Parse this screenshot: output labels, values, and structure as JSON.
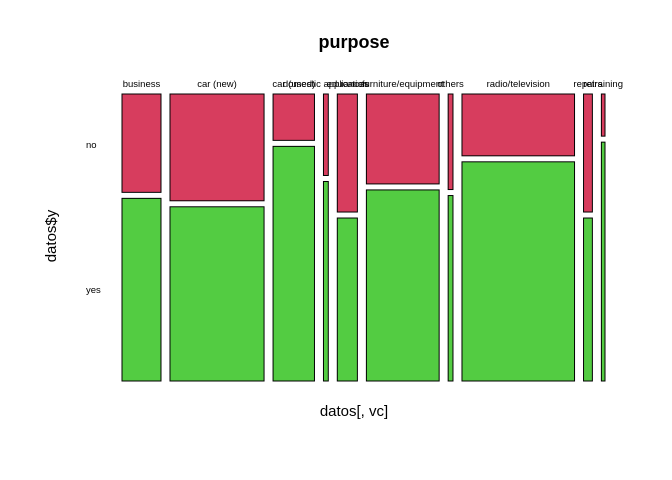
{
  "chart_data": {
    "type": "mosaic",
    "title": "purpose",
    "xlabel": "datos[, vc]",
    "ylabel": "datos$y",
    "row_levels": [
      "no",
      "yes"
    ],
    "colors": {
      "no": "#D73D5E",
      "yes": "#53CC42"
    },
    "categories": [
      "business",
      "car (new)",
      "car (used)",
      "domestic appliances",
      "education",
      "furniture/equipment",
      "others",
      "radio/television",
      "repairs",
      "retraining"
    ],
    "counts": [
      97,
      234,
      103,
      12,
      50,
      181,
      12,
      280,
      22,
      9
    ],
    "no_fraction": [
      0.35,
      0.38,
      0.165,
      0.29,
      0.42,
      0.32,
      0.34,
      0.22,
      0.42,
      0.15
    ]
  }
}
